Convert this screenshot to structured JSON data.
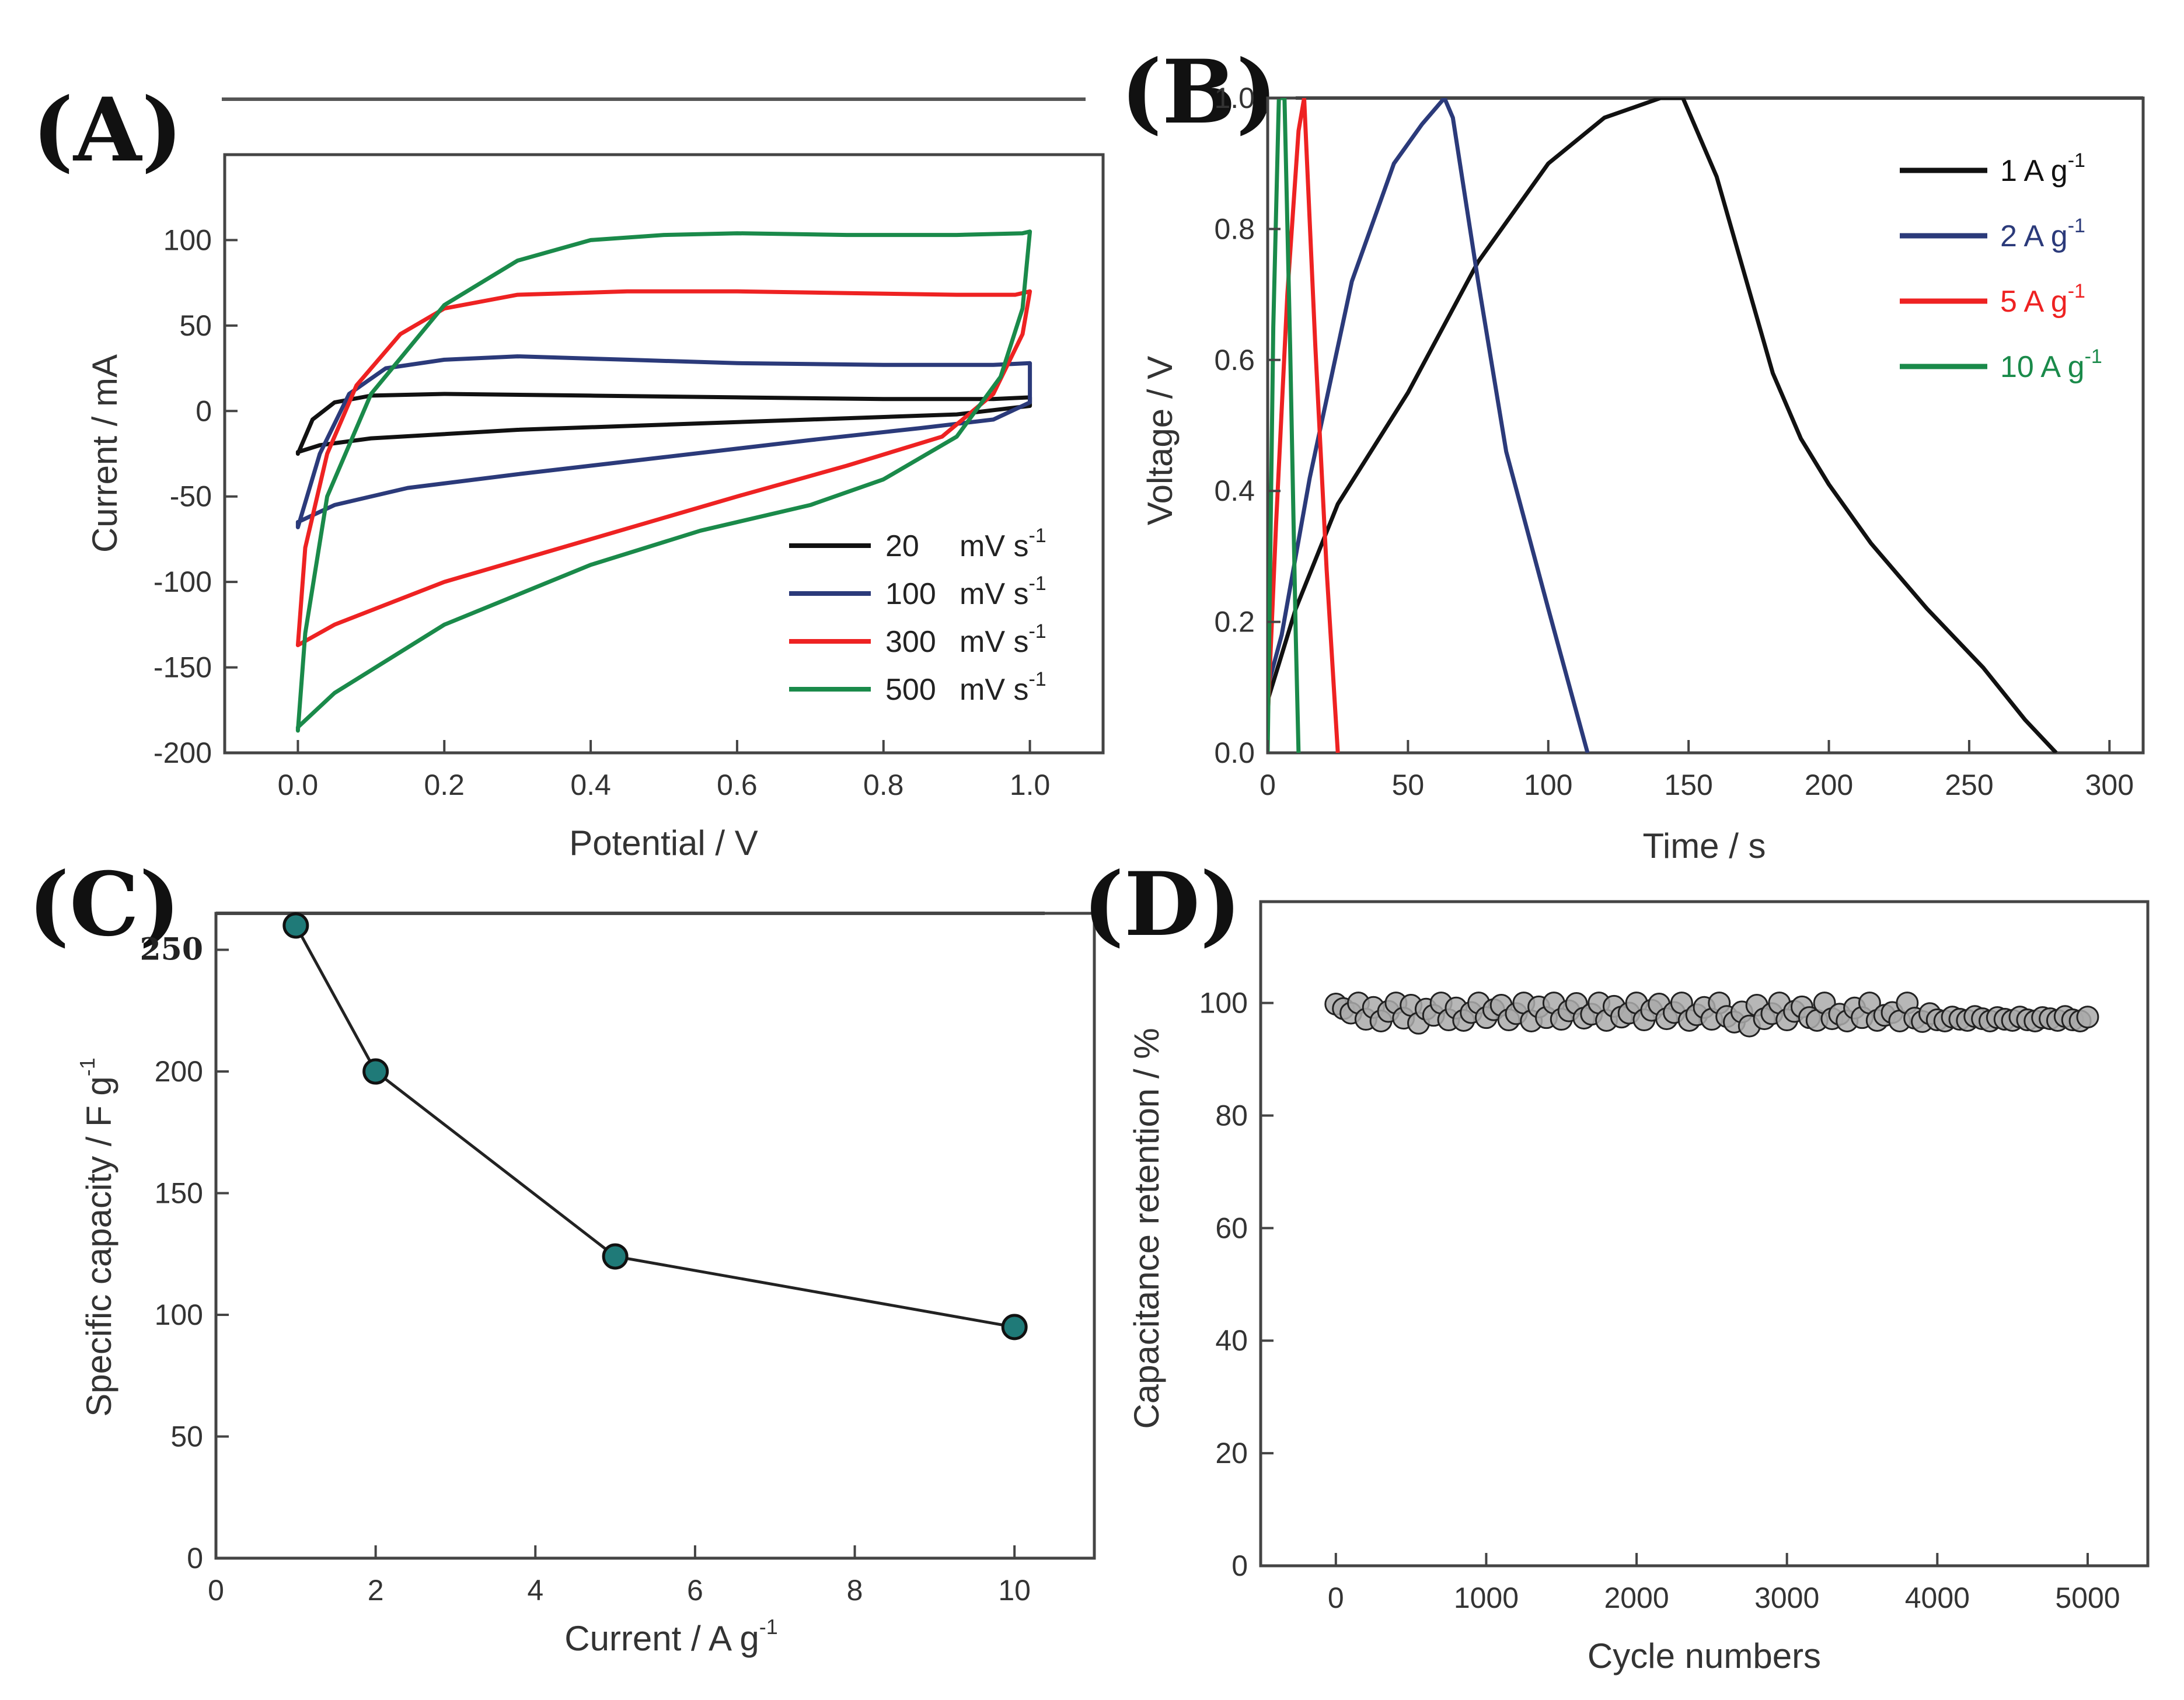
{
  "chart_data": [
    {
      "panel": "(A)",
      "type": "line",
      "xlabel": "Potential / V",
      "ylabel": "Current / mA",
      "xlim": [
        -0.1,
        1.1
      ],
      "ylim": [
        -200,
        150
      ],
      "xticks": [
        0.0,
        0.2,
        0.4,
        0.6,
        0.8,
        1.0
      ],
      "xtick_labels": [
        "0.0",
        "0.2",
        "0.4",
        "0.6",
        "0.8",
        "1.0"
      ],
      "yticks": [
        -200,
        -150,
        -100,
        -50,
        0,
        50,
        100
      ],
      "ytick_labels": [
        "-200",
        "-150",
        "-100",
        "-50",
        "0",
        "50",
        "100"
      ],
      "legend_position": "bottom-right",
      "series": [
        {
          "name": "20 mV s-1",
          "label_value": "20",
          "label_unit": "mV s",
          "label_sup": "-1",
          "color": "#111111",
          "x": [
            0.0,
            0.02,
            0.05,
            0.1,
            0.2,
            0.4,
            0.6,
            0.8,
            0.95,
            1.0,
            1.0,
            0.9,
            0.7,
            0.5,
            0.3,
            0.1,
            0.03,
            0.0,
            0.0
          ],
          "y": [
            -25,
            -5,
            5,
            9,
            10,
            9,
            8,
            7,
            7,
            8,
            3,
            -2,
            -5,
            -8,
            -11,
            -16,
            -20,
            -24,
            -25
          ]
        },
        {
          "name": "100 mV s-1",
          "label_value": "100",
          "label_unit": "mV s",
          "label_sup": "-1",
          "color": "#2b3a7a",
          "x": [
            0.0,
            0.03,
            0.07,
            0.12,
            0.2,
            0.3,
            0.45,
            0.6,
            0.8,
            0.95,
            1.0,
            1.0,
            0.95,
            0.85,
            0.7,
            0.5,
            0.3,
            0.15,
            0.05,
            0.0
          ],
          "y": [
            -68,
            -25,
            10,
            25,
            30,
            32,
            30,
            28,
            27,
            27,
            28,
            5,
            -5,
            -10,
            -17,
            -27,
            -37,
            -45,
            -55,
            -65
          ]
        },
        {
          "name": "300 mV s-1",
          "label_value": "300",
          "label_unit": "mV s",
          "label_sup": "-1",
          "color": "#ee2222",
          "x": [
            0.0,
            0.01,
            0.04,
            0.08,
            0.14,
            0.2,
            0.3,
            0.45,
            0.6,
            0.75,
            0.9,
            0.98,
            1.0,
            0.99,
            0.95,
            0.88,
            0.75,
            0.6,
            0.4,
            0.2,
            0.05,
            0.0
          ],
          "y": [
            -137,
            -80,
            -25,
            15,
            45,
            60,
            68,
            70,
            70,
            69,
            68,
            68,
            70,
            45,
            10,
            -15,
            -32,
            -50,
            -75,
            -100,
            -125,
            -137
          ]
        },
        {
          "name": "500 mV s-1",
          "label_value": "500",
          "label_unit": "mV s",
          "label_sup": "-1",
          "color": "#1a8a4a",
          "x": [
            0.0,
            0.01,
            0.04,
            0.1,
            0.2,
            0.3,
            0.4,
            0.5,
            0.6,
            0.75,
            0.9,
            0.99,
            1.0,
            0.99,
            0.96,
            0.9,
            0.8,
            0.7,
            0.55,
            0.4,
            0.2,
            0.05,
            0.0
          ],
          "y": [
            -187,
            -130,
            -50,
            10,
            62,
            88,
            100,
            103,
            104,
            103,
            103,
            104,
            105,
            60,
            20,
            -15,
            -40,
            -55,
            -70,
            -90,
            -125,
            -165,
            -185
          ]
        }
      ]
    },
    {
      "panel": "(B)",
      "type": "line",
      "xlabel": "Time / s",
      "ylabel": "Voltage / V",
      "xlim": [
        0,
        312
      ],
      "ylim": [
        0,
        1.0
      ],
      "xticks": [
        0,
        50,
        100,
        150,
        200,
        250,
        300
      ],
      "xtick_labels": [
        "0",
        "50",
        "100",
        "150",
        "200",
        "250",
        "300"
      ],
      "yticks": [
        0.0,
        0.2,
        0.4,
        0.6,
        0.8,
        1.0
      ],
      "ytick_labels": [
        "0.0",
        "0.2",
        "0.4",
        "0.6",
        "0.8",
        "1.0"
      ],
      "legend_position": "top-right",
      "series": [
        {
          "name": "1 A g-1",
          "label_value": "1",
          "label_unit": "A g",
          "label_sup": "-1",
          "color": "#111111",
          "x": [
            0,
            10,
            25,
            50,
            75,
            100,
            120,
            140,
            148,
            160,
            170,
            180,
            190,
            200,
            215,
            235,
            255,
            270,
            281
          ],
          "y": [
            0.08,
            0.22,
            0.38,
            0.55,
            0.75,
            0.9,
            0.97,
            1.0,
            1.0,
            0.88,
            0.73,
            0.58,
            0.48,
            0.41,
            0.32,
            0.22,
            0.13,
            0.05,
            0.0
          ]
        },
        {
          "name": "2 A g-1",
          "label_value": "2",
          "label_unit": "A g",
          "label_sup": "-1",
          "color": "#2b3a7a",
          "x": [
            0,
            5,
            15,
            30,
            45,
            55,
            63,
            66,
            75,
            85,
            100,
            114
          ],
          "y": [
            0.1,
            0.18,
            0.42,
            0.72,
            0.9,
            0.96,
            1.0,
            0.97,
            0.72,
            0.46,
            0.22,
            0.0
          ]
        },
        {
          "name": "5 A g-1",
          "label_value": "5",
          "label_unit": "A g",
          "label_sup": "-1",
          "color": "#ee2222",
          "x": [
            0,
            3,
            7,
            11,
            13,
            17,
            21,
            25
          ],
          "y": [
            0.05,
            0.35,
            0.7,
            0.95,
            1.0,
            0.62,
            0.28,
            0.0
          ]
        },
        {
          "name": "10 A g-1",
          "label_value": "10",
          "label_unit": "A g",
          "label_sup": "-1",
          "color": "#1a8a4a",
          "x": [
            0,
            2,
            4,
            6,
            8,
            10,
            11
          ],
          "y": [
            0.0,
            0.65,
            1.0,
            1.0,
            0.62,
            0.18,
            0.0
          ]
        }
      ]
    },
    {
      "panel": "(C)",
      "type": "line",
      "xlabel": "Current / A g",
      "xlabel_sup": "-1",
      "ylabel": "Specific capacity / F g",
      "ylabel_sup": "-1",
      "xlim": [
        0,
        11
      ],
      "ylim": [
        0,
        265
      ],
      "xticks": [
        0,
        2,
        4,
        6,
        8,
        10
      ],
      "xtick_labels": [
        "0",
        "2",
        "4",
        "6",
        "8",
        "10"
      ],
      "yticks": [
        0,
        50,
        100,
        150,
        200,
        250
      ],
      "ytick_labels": [
        "0",
        "50",
        "100",
        "150",
        "200",
        "250"
      ],
      "marker_color": "#1f7a78",
      "series": [
        {
          "name": "Specific capacity",
          "x": [
            1,
            2,
            5,
            10
          ],
          "y": [
            260,
            200,
            124,
            95
          ]
        }
      ]
    },
    {
      "panel": "(D)",
      "type": "scatter",
      "xlabel": "Cycle numbers",
      "ylabel": "Capacitance retention / %",
      "xlim": [
        -500,
        5400
      ],
      "ylim": [
        0,
        118
      ],
      "xticks": [
        0,
        1000,
        2000,
        3000,
        4000,
        5000
      ],
      "xtick_labels": [
        "0",
        "1000",
        "2000",
        "3000",
        "4000",
        "5000"
      ],
      "yticks": [
        0,
        20,
        40,
        60,
        80,
        100
      ],
      "ytick_labels": [
        "0",
        "20",
        "40",
        "60",
        "80",
        "100"
      ],
      "marker_color": "#aaaaaa",
      "series": [
        {
          "name": "Capacitance retention",
          "x": [
            0,
            50,
            100,
            150,
            200,
            250,
            300,
            350,
            400,
            450,
            500,
            550,
            600,
            650,
            700,
            750,
            800,
            850,
            900,
            950,
            1000,
            1050,
            1100,
            1150,
            1200,
            1250,
            1300,
            1350,
            1400,
            1450,
            1500,
            1550,
            1600,
            1650,
            1700,
            1750,
            1800,
            1850,
            1900,
            1950,
            2000,
            2050,
            2100,
            2150,
            2200,
            2250,
            2300,
            2350,
            2400,
            2450,
            2500,
            2550,
            2600,
            2650,
            2700,
            2750,
            2800,
            2850,
            2900,
            2950,
            3000,
            3050,
            3100,
            3150,
            3200,
            3250,
            3300,
            3350,
            3400,
            3450,
            3500,
            3550,
            3600,
            3650,
            3700,
            3750,
            3800,
            3850,
            3900,
            3950,
            4000,
            4050,
            4100,
            4150,
            4200,
            4250,
            4300,
            4350,
            4400,
            4450,
            4500,
            4550,
            4600,
            4650,
            4700,
            4750,
            4800,
            4850,
            4900,
            4950,
            5000
          ],
          "y": [
            99.8,
            99.0,
            98.2,
            100.0,
            97.1,
            99.2,
            96.8,
            98.5,
            100.0,
            97.3,
            99.6,
            96.4,
            98.9,
            97.8,
            100.0,
            97.0,
            99.1,
            96.9,
            98.3,
            100.0,
            97.4,
            98.8,
            99.6,
            97.0,
            98.1,
            100.0,
            96.8,
            99.3,
            97.4,
            100.0,
            97.1,
            98.6,
            99.9,
            97.3,
            98.0,
            100.0,
            96.9,
            99.4,
            97.5,
            98.2,
            100.0,
            97.0,
            98.7,
            99.8,
            97.2,
            98.3,
            100.0,
            96.9,
            97.9,
            99.2,
            97.1,
            100.0,
            97.6,
            96.6,
            98.4,
            95.9,
            99.6,
            97.2,
            98.1,
            100.0,
            97.0,
            98.5,
            99.3,
            97.4,
            96.9,
            100.0,
            97.2,
            98.0,
            96.8,
            99.1,
            97.4,
            100.0,
            96.9,
            97.8,
            98.3,
            96.8,
            100.0,
            97.3,
            96.7,
            98.1,
            97.0,
            96.8,
            97.5,
            97.1,
            96.9,
            97.6,
            97.2,
            96.8,
            97.4,
            97.1,
            96.9,
            97.5,
            97.0,
            96.8,
            97.4,
            97.2,
            96.9,
            97.6,
            97.0,
            96.8,
            97.5
          ]
        }
      ]
    }
  ]
}
